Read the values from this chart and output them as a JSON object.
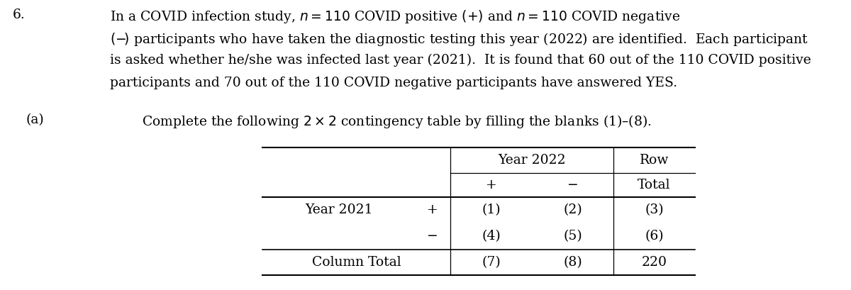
{
  "problem_number": "6.",
  "para_lines": [
    "In a COVID infection study, $n = 110$ COVID positive $(+)$ and $n = 110$ COVID negative",
    "$(-\\!)$ participants who have taken the diagnostic testing this year (2022) are identified.  Each participant",
    "is asked whether he/she was infected last year (2021).  It is found that 60 out of the 110 COVID positive",
    "participants and 70 out of the 110 COVID negative participants have answered YES."
  ],
  "part_a_label": "(a)",
  "part_a_text": "Complete the following $2 \\times 2$ contingency table by filling the blanks (1)–(8).",
  "table_header1_col1": "Year 2022",
  "table_header1_col2": "Row",
  "table_header2_col1": "+",
  "table_header2_col2": "−",
  "table_header2_col3": "Total",
  "row1_label": "Year 2021",
  "row1_sign": "+",
  "row1_data": [
    "(1)",
    "(2)",
    "(3)"
  ],
  "row2_sign": "−",
  "row2_data": [
    "(4)",
    "(5)",
    "(6)"
  ],
  "footer_label": "Column Total",
  "footer_data": [
    "(7)",
    "(8)",
    "220"
  ],
  "bg_color": "#ffffff",
  "text_color": "#000000",
  "font_size_body": 13.5,
  "font_size_table": 13.5
}
